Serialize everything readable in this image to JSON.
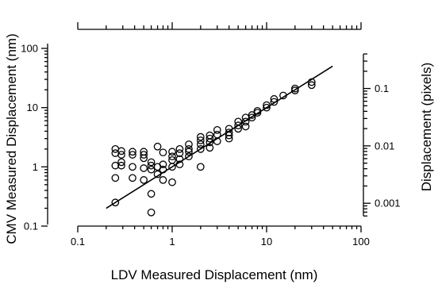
{
  "chart_data": {
    "type": "scatter",
    "title": "",
    "xlabel": "LDV Measured Displacement (nm)",
    "ylabel": "CMV Measured Displacement (nm)",
    "y2label": "Displacement (pixels)",
    "xscale": "log",
    "yscale": "log",
    "y2scale": "log",
    "xlim": [
      0.1,
      100
    ],
    "ylim": [
      0.1,
      100
    ],
    "y2lim": [
      0.0004,
      0.5
    ],
    "grid": false,
    "legend": "none",
    "x_ticks": [
      "0.1",
      "1",
      "10",
      "100"
    ],
    "y_ticks": [
      "0.1",
      "1",
      "10",
      "100"
    ],
    "y2_ticks": [
      "0.001",
      "0.01",
      "0.1"
    ],
    "marker": "open-circle",
    "fit_line": {
      "x": [
        0.2,
        50
      ],
      "y": [
        0.2,
        50
      ]
    },
    "points": {
      "x": [
        0.25,
        0.25,
        0.25,
        0.25,
        0.25,
        0.29,
        0.29,
        0.29,
        0.29,
        0.38,
        0.38,
        0.38,
        0.38,
        0.5,
        0.5,
        0.5,
        0.5,
        0.5,
        0.6,
        0.6,
        0.6,
        0.6,
        0.6,
        0.7,
        0.7,
        0.7,
        0.8,
        0.8,
        0.8,
        0.8,
        1.0,
        1.0,
        1.0,
        1.0,
        1.0,
        1.2,
        1.2,
        1.2,
        1.2,
        1.5,
        1.5,
        1.5,
        1.5,
        2.0,
        2.0,
        2.0,
        2.0,
        2.0,
        2.5,
        2.5,
        2.5,
        2.5,
        3.0,
        3.0,
        3.0,
        4.0,
        4.0,
        4.0,
        4.0,
        5.0,
        5.0,
        5.0,
        6.0,
        6.0,
        6.0,
        7.0,
        7.0,
        8.0,
        8.0,
        10.0,
        10.0,
        12.0,
        12.0,
        15.0,
        20.0,
        20.0,
        30.0,
        30.0
      ],
      "y": [
        2.0,
        1.7,
        1.05,
        0.65,
        0.25,
        1.85,
        1.6,
        1.2,
        1.05,
        1.8,
        1.6,
        1.0,
        0.65,
        1.8,
        1.6,
        1.4,
        0.95,
        0.6,
        1.2,
        1.05,
        0.9,
        0.35,
        0.17,
        2.2,
        1.0,
        0.75,
        1.75,
        1.1,
        0.9,
        0.6,
        1.8,
        1.5,
        1.3,
        1.0,
        0.55,
        2.0,
        1.7,
        1.35,
        1.1,
        2.4,
        2.0,
        1.8,
        1.5,
        3.2,
        2.8,
        2.4,
        2.0,
        1.0,
        3.4,
        3.0,
        2.6,
        2.1,
        4.2,
        3.5,
        2.7,
        4.4,
        3.8,
        3.4,
        3.0,
        5.8,
        5.0,
        4.4,
        6.8,
        5.8,
        4.8,
        7.5,
        6.8,
        8.8,
        8.2,
        11.0,
        10.0,
        14.0,
        12.5,
        16.0,
        21.0,
        19.5,
        27.0,
        24.0
      ]
    }
  }
}
